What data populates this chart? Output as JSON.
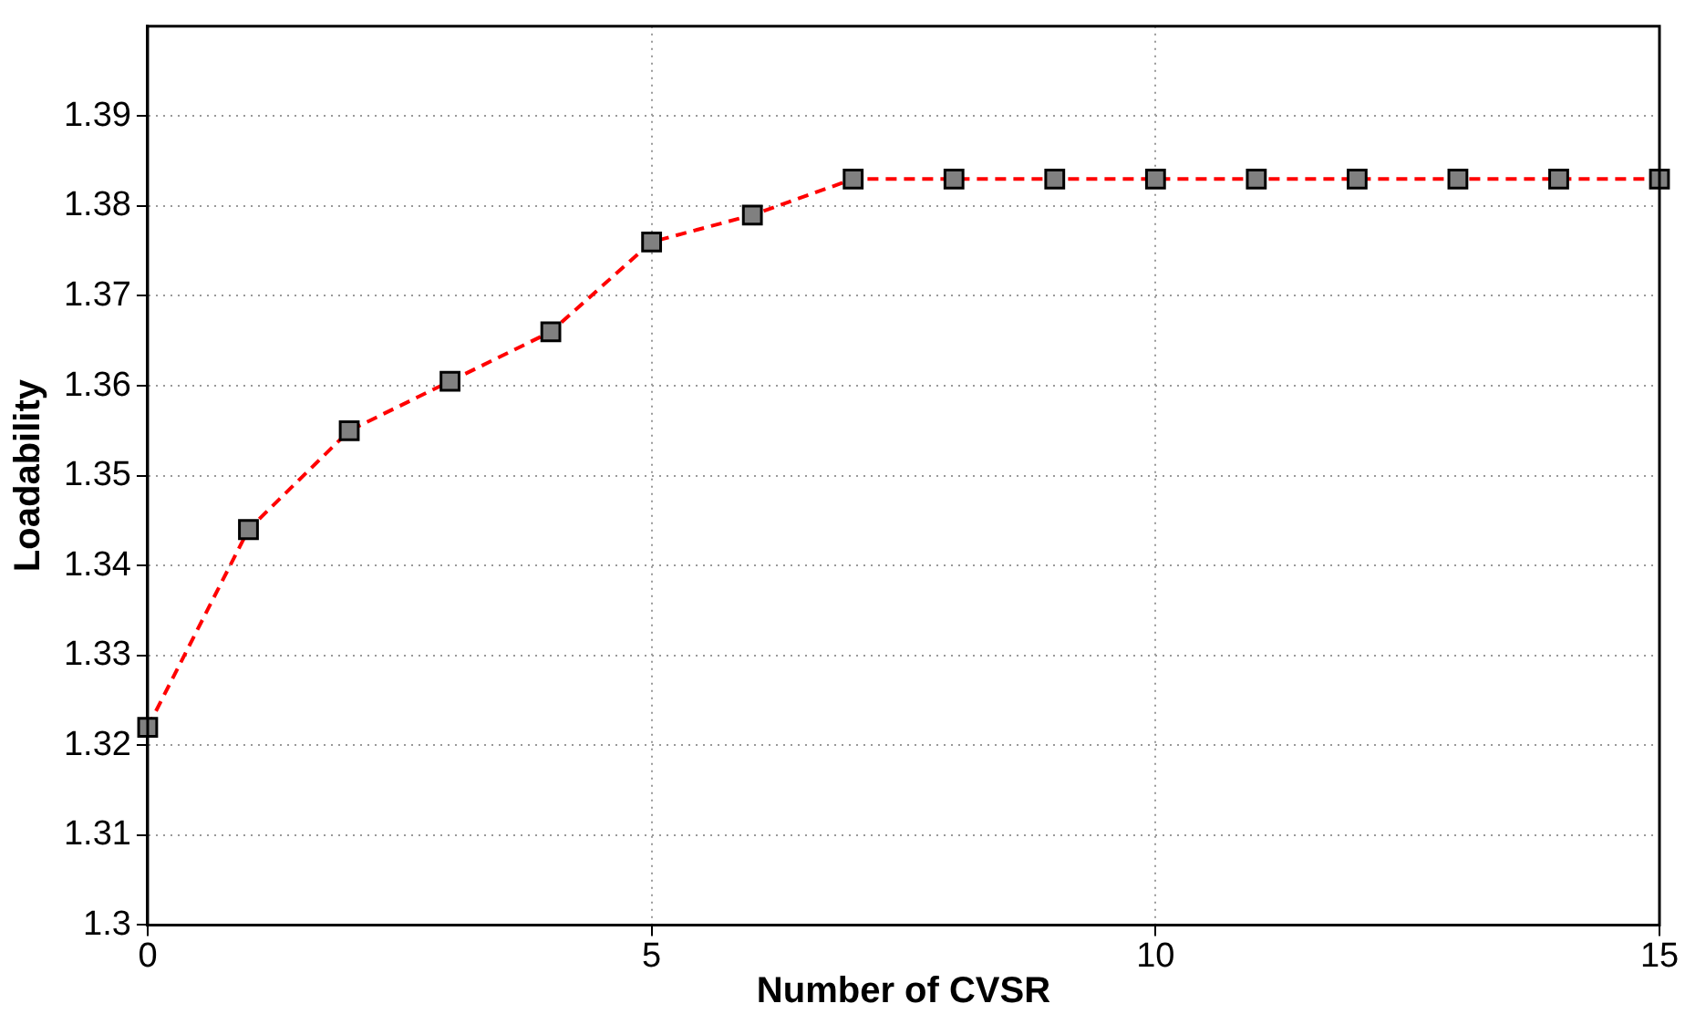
{
  "chart_data": {
    "type": "line",
    "xlabel": "Number of CVSR",
    "ylabel": "Loadability",
    "x": [
      0,
      1,
      2,
      3,
      4,
      5,
      6,
      7,
      8,
      9,
      10,
      11,
      12,
      13,
      14,
      15
    ],
    "series": [
      {
        "color": "#ff0000",
        "values": [
          1.322,
          1.344,
          1.355,
          1.3605,
          1.366,
          1.376,
          1.379,
          1.383,
          1.383,
          1.383,
          1.383,
          1.383,
          1.383,
          1.383,
          1.383,
          1.383
        ]
      }
    ],
    "xlim": [
      0,
      15
    ],
    "xticks": [
      0,
      5,
      10,
      15
    ],
    "ylim": [
      1.3,
      1.4
    ],
    "yticks": [
      1.3,
      1.31,
      1.32,
      1.33,
      1.34,
      1.35,
      1.36,
      1.37,
      1.38,
      1.39
    ],
    "grid": true,
    "marker": "square",
    "line_style": "dashed",
    "legend": false
  }
}
